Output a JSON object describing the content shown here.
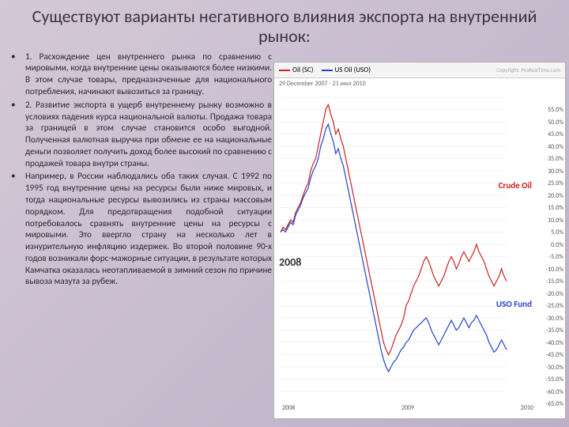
{
  "title": "Существуют варианты негативного влияния экспорта на внутренний рынок:",
  "bullets": [
    "1. Расхождение цен внутреннего рынка по сравнению с мировыми, когда внутренние цены оказываются более низкими. В этом случае товары, предназначенные для национального потребления, начинают вывозиться за границу.",
    "2. Развитие экспорта в ущерб внутреннему рынку возможно в условиях падения курса национальной валюты. Продажа товара за границей в этом случае становится особо выгодной. Полученная валютная выручка при обмене ее на национальные деньги позволяет получить доход более высокий по сравнению с продажей товара внутри страны.",
    "Например, в России наблюдались оба таких случая. С 1992 по 1995 год внутренние цены на ресурсы были ниже мировых, и тогда национальные ресурсы вывозились из страны массовым порядком. Для предотвращения подобной ситуации потребовалось сравнять внутренние цены на ресурсы с мировыми. Это ввергло страну на несколько лет в изнурительную инфляцию издержек. Во второй половине 90-х годов возникали форс-мажорные ситуации, в результате которых Камчатка оказалась неотапливаемой в зимний сезон по причине вывоза мазута за рубеж."
  ],
  "chart": {
    "type": "line",
    "legend": [
      {
        "label": "Oil (SC)",
        "color": "#cc2222"
      },
      {
        "label": "US Oil (USO)",
        "color": "#2244cc"
      }
    ],
    "date_range": "29 December 2007 - 21 июл 2010",
    "copyright": "Copyright: ProRealTime.com",
    "ylim": [
      -65,
      55
    ],
    "ytick_step": 5,
    "x_labels": [
      "2008",
      "2009",
      "2010"
    ],
    "year_box": "2008",
    "label_crude": {
      "text": "Crude Oil",
      "color": "#cc2222"
    },
    "label_uso": {
      "text": "USO Fund",
      "color": "#2244cc"
    },
    "background_color": "#ffffff",
    "grid_color": "#e5e5e5",
    "series": {
      "oil": {
        "color": "#cc2222",
        "points": [
          0,
          2,
          1,
          3,
          5,
          4,
          8,
          10,
          12,
          15,
          18,
          20,
          25,
          28,
          30,
          35,
          40,
          45,
          50,
          52,
          48,
          45,
          40,
          42,
          38,
          35,
          30,
          25,
          20,
          15,
          10,
          5,
          0,
          -5,
          -10,
          -15,
          -20,
          -25,
          -30,
          -35,
          -40,
          -45,
          -48,
          -50,
          -48,
          -45,
          -42,
          -40,
          -38,
          -35,
          -30,
          -28,
          -25,
          -22,
          -20,
          -18,
          -15,
          -12,
          -10,
          -12,
          -15,
          -18,
          -20,
          -22,
          -20,
          -18,
          -15,
          -12,
          -10,
          -12,
          -15,
          -13,
          -10,
          -8,
          -10,
          -12,
          -10,
          -8,
          -5,
          -8,
          -10,
          -12,
          -15,
          -18,
          -20,
          -22,
          -20,
          -18,
          -15,
          -18,
          -20
        ]
      },
      "uso": {
        "color": "#2244cc",
        "points": [
          0,
          1,
          0,
          2,
          4,
          3,
          7,
          9,
          11,
          14,
          16,
          18,
          22,
          25,
          27,
          30,
          35,
          38,
          42,
          44,
          40,
          37,
          32,
          34,
          30,
          27,
          22,
          17,
          12,
          7,
          2,
          -3,
          -8,
          -13,
          -18,
          -23,
          -28,
          -33,
          -38,
          -43,
          -48,
          -52,
          -55,
          -57,
          -55,
          -53,
          -52,
          -50,
          -48,
          -47,
          -45,
          -44,
          -42,
          -40,
          -39,
          -38,
          -37,
          -36,
          -35,
          -37,
          -40,
          -42,
          -44,
          -46,
          -44,
          -42,
          -40,
          -38,
          -36,
          -38,
          -40,
          -39,
          -37,
          -35,
          -37,
          -39,
          -37,
          -36,
          -34,
          -36,
          -38,
          -40,
          -42,
          -45,
          -47,
          -49,
          -48,
          -46,
          -44,
          -46,
          -48
        ]
      }
    }
  }
}
